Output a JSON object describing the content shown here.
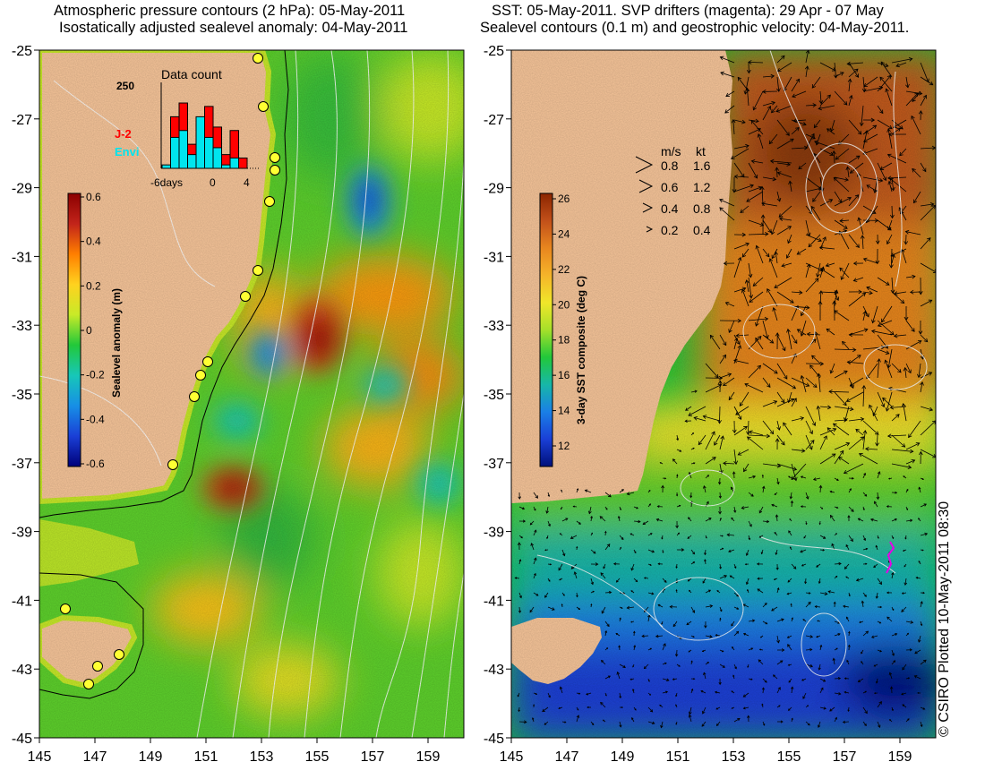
{
  "left_panel": {
    "title_line1": "Atmospheric pressure contours (2 hPa): 05-May-2011",
    "title_line2": "Isostatically adjusted sealevel anomaly: 04-May-2011",
    "colorbar": {
      "label": "Sealevel anomaly (m)",
      "ticks": [
        "0.6",
        "0.4",
        "0.2",
        "0",
        "-0.2",
        "-0.4",
        "-0.6"
      ],
      "colors": [
        "#8b0000",
        "#c2241a",
        "#ff7f00",
        "#ffd21f",
        "#c8ea28",
        "#22c83a",
        "#17c7b8",
        "#178fe6",
        "#1a3fd6",
        "#00007a"
      ]
    },
    "inset": {
      "title": "Data count",
      "ymax_label": "250",
      "x_labels": [
        "-6days",
        "0",
        "4"
      ],
      "series": [
        {
          "name": "J-2",
          "color": "#ff0000",
          "values": [
            0,
            150,
            190,
            70,
            120,
            180,
            120,
            40,
            110,
            30
          ]
        },
        {
          "name": "Envi",
          "color": "#00e5ee",
          "values": [
            10,
            90,
            110,
            40,
            150,
            90,
            60,
            10,
            30,
            0
          ]
        }
      ]
    },
    "overlays": {
      "land_color": "#f9c79b",
      "pressure_contour_color": "#ffffff",
      "coast_color": "#000000",
      "tide_gauge_color": "#ffff00"
    }
  },
  "right_panel": {
    "title_line1": "SST: 05-May-2011. SVP drifters (magenta): 29 Apr - 07 May",
    "title_line2": "Sealevel contours (0.1 m) and geostrophic velocity: 04-May-2011.",
    "colorbar": {
      "label": "3-day SST composite (deg C)",
      "ticks": [
        "26",
        "24",
        "22",
        "20",
        "18",
        "16",
        "14",
        "12"
      ],
      "colors": [
        "#8b2500",
        "#c2501a",
        "#e8861f",
        "#f5b42a",
        "#f0e62a",
        "#a6e02a",
        "#22c83a",
        "#17b7a8",
        "#1a7fe6",
        "#1a3fd6",
        "#00107a"
      ]
    },
    "velocity_legend": {
      "header_ms": "m/s",
      "header_kt": "kt",
      "rows": [
        {
          "ms": "0.8",
          "kt": "1.6"
        },
        {
          "ms": "0.6",
          "kt": "1.2"
        },
        {
          "ms": "0.4",
          "kt": "0.8"
        },
        {
          "ms": "0.2",
          "kt": "0.4"
        }
      ]
    },
    "overlays": {
      "land_color": "#f9c79b",
      "sealevel_contour_color": "#ffffff",
      "velocity_arrow_color": "#000000",
      "drifter_color": "#ff00ff"
    }
  },
  "axes": {
    "lon_labels": [
      "145",
      "147",
      "149",
      "151",
      "153",
      "155",
      "157",
      "159"
    ],
    "lat_labels": [
      "-25",
      "-27",
      "-29",
      "-31",
      "-33",
      "-35",
      "-37",
      "-39",
      "-41",
      "-43",
      "-45"
    ]
  },
  "credit": "© CSIRO Plotted 10-May-2011 08:30"
}
